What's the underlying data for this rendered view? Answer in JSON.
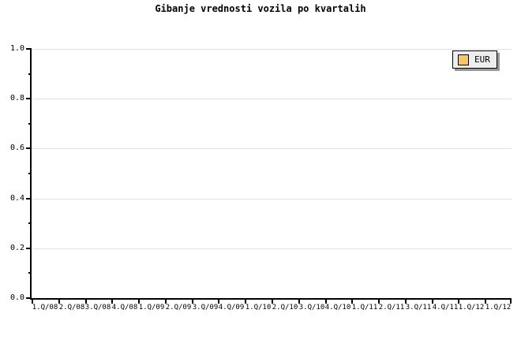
{
  "title": "Gibanje vrednosti vozila po kvartalih",
  "chart_data": {
    "type": "line",
    "title": "Gibanje vrednosti vozila po kvartalih",
    "categories": [
      "1.Q/08",
      "2.Q/08",
      "3.Q/08",
      "4.Q/08",
      "1.Q/09",
      "2.Q/09",
      "3.Q/09",
      "4.Q/09",
      "1.Q/10",
      "2.Q/10",
      "3.Q/10",
      "4.Q/10",
      "1.Q/11",
      "2.Q/11",
      "3.Q/11",
      "4.Q/11",
      "1.Q/12",
      "1.Q/12"
    ],
    "series": [
      {
        "name": "EUR",
        "color": "#f6c667",
        "values": []
      }
    ],
    "xlabel": "",
    "ylabel": "",
    "ylim": [
      0.0,
      1.0
    ],
    "y_major_ticks": [
      0.0,
      0.2,
      0.4,
      0.6,
      0.8,
      1.0
    ],
    "y_tick_labels": [
      "0.0",
      "0.2",
      "0.4",
      "0.6",
      "0.8",
      "1.0"
    ],
    "y_minor_step": 0.1,
    "grid": "horizontal-major-only",
    "legend_position": "top-right",
    "plotted_points": 0
  },
  "legend": {
    "items": [
      {
        "label": "EUR",
        "swatch_color": "#f6c667"
      }
    ]
  },
  "colors": {
    "background": "#ffffff",
    "axis": "#000000",
    "grid": "#e0e0e0",
    "legend_bg": "#eeeeee",
    "legend_border": "#000000",
    "legend_shadow": "#999999",
    "swatch": "#f6c667",
    "text": "#000000"
  }
}
